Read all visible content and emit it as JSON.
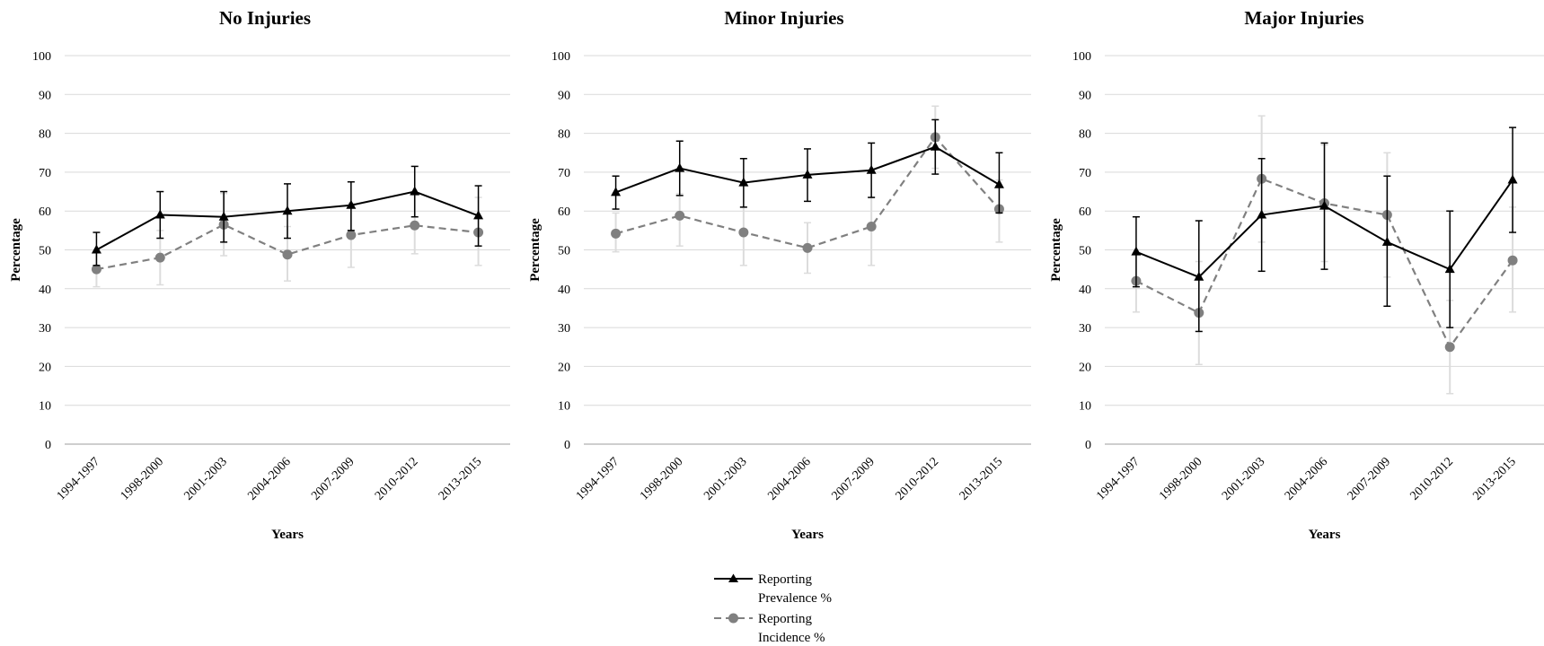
{
  "chart_data": [
    {
      "type": "line",
      "title": "No Injuries",
      "xlabel": "Years",
      "ylabel": "Percentage",
      "ylim": [
        0,
        100
      ],
      "yticks": [
        0,
        10,
        20,
        30,
        40,
        50,
        60,
        70,
        80,
        90,
        100
      ],
      "grid": "horizontal",
      "categories": [
        "1994-1997",
        "1998-2000",
        "2001-2003",
        "2004-2006",
        "2007-2009",
        "2010-2012",
        "2013-2015"
      ],
      "series": [
        {
          "name": "Reporting Prevalence %",
          "color": "#000000",
          "marker": "triangle",
          "line": "solid",
          "values": [
            50.0,
            59.0,
            58.5,
            60.0,
            61.5,
            65.0,
            58.8
          ],
          "error_low": [
            46.0,
            53.0,
            52.0,
            53.0,
            55.0,
            58.5,
            51.0
          ],
          "error_high": [
            54.5,
            65.0,
            65.0,
            67.0,
            67.5,
            71.5,
            66.5
          ]
        },
        {
          "name": "Reporting Incidence %",
          "color": "#808080",
          "marker": "circle",
          "line": "dashed",
          "values": [
            45.0,
            48.0,
            56.5,
            48.8,
            53.8,
            56.3,
            54.5
          ],
          "error_low": [
            40.5,
            41.0,
            48.5,
            42.0,
            45.5,
            49.0,
            46.0
          ],
          "error_high": [
            50.0,
            55.0,
            64.5,
            56.0,
            62.0,
            64.0,
            63.5
          ]
        }
      ]
    },
    {
      "type": "line",
      "title": "Minor Injuries",
      "xlabel": "Years",
      "ylabel": "Percentage",
      "ylim": [
        0,
        100
      ],
      "yticks": [
        0,
        10,
        20,
        30,
        40,
        50,
        60,
        70,
        80,
        90,
        100
      ],
      "grid": "horizontal",
      "categories": [
        "1994-1997",
        "1998-2000",
        "2001-2003",
        "2004-2006",
        "2007-2009",
        "2010-2012",
        "2013-2015"
      ],
      "series": [
        {
          "name": "Reporting Prevalence %",
          "color": "#000000",
          "marker": "triangle",
          "line": "solid",
          "values": [
            64.8,
            71.0,
            67.3,
            69.3,
            70.5,
            76.5,
            66.8
          ],
          "error_low": [
            60.5,
            64.0,
            61.0,
            62.5,
            63.5,
            69.5,
            59.5
          ],
          "error_high": [
            69.0,
            78.0,
            73.5,
            76.0,
            77.5,
            83.5,
            75.0
          ]
        },
        {
          "name": "Reporting Incidence %",
          "color": "#808080",
          "marker": "circle",
          "line": "dashed",
          "values": [
            54.2,
            58.8,
            54.5,
            50.5,
            56.0,
            79.0,
            60.5
          ],
          "error_low": [
            49.5,
            51.0,
            46.0,
            44.0,
            46.0,
            71.0,
            52.0
          ],
          "error_high": [
            59.5,
            64.5,
            61.0,
            57.0,
            63.5,
            87.0,
            68.0
          ]
        }
      ]
    },
    {
      "type": "line",
      "title": "Major Injuries",
      "xlabel": "Years",
      "ylabel": "Percentage",
      "ylim": [
        0,
        100
      ],
      "yticks": [
        0,
        10,
        20,
        30,
        40,
        50,
        60,
        70,
        80,
        90,
        100
      ],
      "grid": "horizontal",
      "categories": [
        "1994-1997",
        "1998-2000",
        "2001-2003",
        "2004-2006",
        "2007-2009",
        "2010-2012",
        "2013-2015"
      ],
      "series": [
        {
          "name": "Reporting Prevalence %",
          "color": "#000000",
          "marker": "triangle",
          "line": "solid",
          "values": [
            49.5,
            43.0,
            59.0,
            61.3,
            52.0,
            45.0,
            68.0
          ],
          "error_low": [
            40.5,
            29.0,
            44.5,
            45.0,
            35.5,
            30.0,
            54.5
          ],
          "error_high": [
            58.5,
            57.5,
            73.5,
            77.5,
            69.0,
            60.0,
            81.5
          ]
        },
        {
          "name": "Reporting Incidence %",
          "color": "#808080",
          "marker": "circle",
          "line": "dashed",
          "values": [
            42.0,
            33.8,
            68.3,
            62.0,
            59.0,
            25.0,
            47.3
          ],
          "error_low": [
            34.0,
            20.5,
            52.0,
            47.0,
            43.0,
            13.0,
            34.0
          ],
          "error_high": [
            50.0,
            47.0,
            84.5,
            77.0,
            75.0,
            37.0,
            61.0
          ]
        }
      ]
    }
  ],
  "legend": {
    "placement": "bottom-center",
    "items": [
      {
        "line1": "Reporting",
        "line2": "Prevalence %"
      },
      {
        "line1": "Reporting",
        "line2": "Incidence %"
      }
    ]
  }
}
